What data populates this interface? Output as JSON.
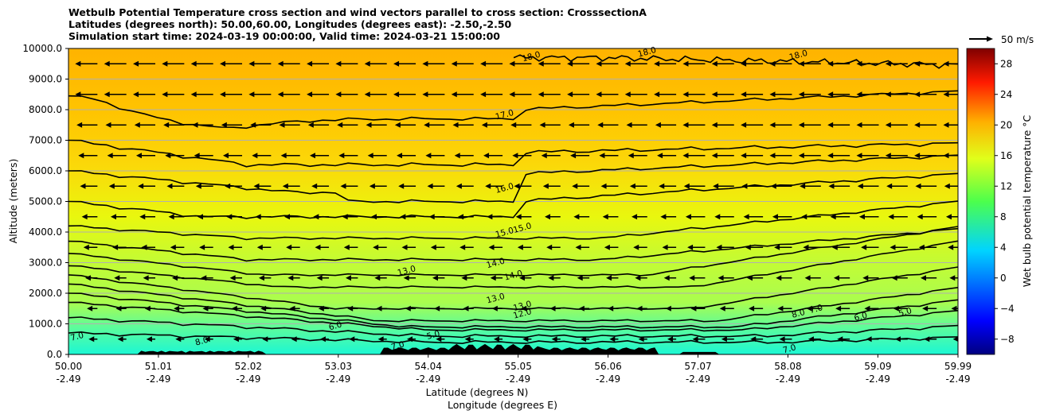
{
  "title_lines": [
    "Wetbulb Potential Temperature cross section and wind vectors parallel to cross section: CrosssectionA",
    "Latitudes (degrees north): 50.00,60.00, Longitudes (degrees east): -2.50,-2.50",
    "Simulation start time: 2024-03-19 00:00:00, Valid time: 2024-03-21 15:00:00"
  ],
  "chart_data": {
    "type": "heatmap",
    "title": "Wetbulb Potential Temperature cross section and wind vectors parallel to cross section: CrosssectionA",
    "xlabel": "Latitude (degrees N)",
    "xlabel2": "Longitude (degrees E)",
    "ylabel": "Altitude (meters)",
    "colorbar_label": "Wet bulb potential temperature °C",
    "xlim": [
      50.0,
      59.99
    ],
    "ylim": [
      0,
      10000
    ],
    "x_ticks": [
      50.0,
      51.01,
      52.02,
      53.03,
      54.04,
      55.05,
      56.06,
      57.07,
      58.08,
      59.09,
      59.99
    ],
    "x_tick_labels": [
      "50.00",
      "51.01",
      "52.02",
      "53.03",
      "54.04",
      "55.05",
      "56.06",
      "57.07",
      "58.08",
      "59.09",
      "59.99"
    ],
    "x_tick_labels_lon": [
      "-2.49",
      "-2.49",
      "-2.49",
      "-2.49",
      "-2.49",
      "-2.49",
      "-2.49",
      "-2.49",
      "-2.49",
      "-2.49",
      "-2.49"
    ],
    "y_ticks": [
      0,
      1000,
      2000,
      3000,
      4000,
      5000,
      6000,
      7000,
      8000,
      9000,
      10000
    ],
    "y_tick_labels": [
      "0.0",
      "1000.0",
      "2000.0",
      "3000.0",
      "4000.0",
      "5000.0",
      "6000.0",
      "7000.0",
      "8000.0",
      "9000.0",
      "10000.0"
    ],
    "grid": "horizontal",
    "colormap": "jet",
    "colorbar_range": [
      -10,
      30
    ],
    "colorbar_ticks": [
      -8,
      -4,
      0,
      4,
      8,
      12,
      16,
      20,
      24,
      28
    ],
    "colorbar_tick_labels": [
      "−8",
      "−4",
      "0",
      "4",
      "8",
      "12",
      "16",
      "20",
      "24",
      "28"
    ],
    "wind_reference_label": "50 m/s",
    "wind_direction": "southward (arrows point left)",
    "contour_levels_labeled": [
      {
        "value": "18.0",
        "lat": 55.2,
        "alt": 9700
      },
      {
        "value": "18.0",
        "lat": 56.5,
        "alt": 9850
      },
      {
        "value": "18.0",
        "lat": 58.2,
        "alt": 9750
      },
      {
        "value": "17.0",
        "lat": 54.9,
        "alt": 7800
      },
      {
        "value": "16.0",
        "lat": 54.9,
        "alt": 5400
      },
      {
        "value": "15.0",
        "lat": 54.9,
        "alt": 3950
      },
      {
        "value": "15.0",
        "lat": 55.1,
        "alt": 4100
      },
      {
        "value": "14.0",
        "lat": 54.8,
        "alt": 2950
      },
      {
        "value": "14.0",
        "lat": 55.0,
        "alt": 2550
      },
      {
        "value": "13.0",
        "lat": 53.8,
        "alt": 2700
      },
      {
        "value": "13.0",
        "lat": 54.8,
        "alt": 1800
      },
      {
        "value": "13.0",
        "lat": 55.1,
        "alt": 1550
      },
      {
        "value": "12.0",
        "lat": 55.1,
        "alt": 1300
      },
      {
        "value": "8.0",
        "lat": 58.2,
        "alt": 1300
      },
      {
        "value": "7.0",
        "lat": 58.4,
        "alt": 1450
      },
      {
        "value": "6.0",
        "lat": 58.9,
        "alt": 1200
      },
      {
        "value": "5.0",
        "lat": 59.4,
        "alt": 1350
      },
      {
        "value": "7.0",
        "lat": 50.1,
        "alt": 550
      },
      {
        "value": "8.0",
        "lat": 51.5,
        "alt": 400
      },
      {
        "value": "6.0",
        "lat": 53.0,
        "alt": 900
      },
      {
        "value": "7.0",
        "lat": 53.7,
        "alt": 250
      },
      {
        "value": "5.0",
        "lat": 54.1,
        "alt": 600
      },
      {
        "value": "7.0",
        "lat": 58.1,
        "alt": 150
      }
    ],
    "contour_label_texts": [
      "18.0",
      "17.0",
      "16.0",
      "15.0",
      "14.0",
      "13.0",
      "12.0",
      "8.0",
      "7.0",
      "6.0",
      "5.0"
    ]
  }
}
